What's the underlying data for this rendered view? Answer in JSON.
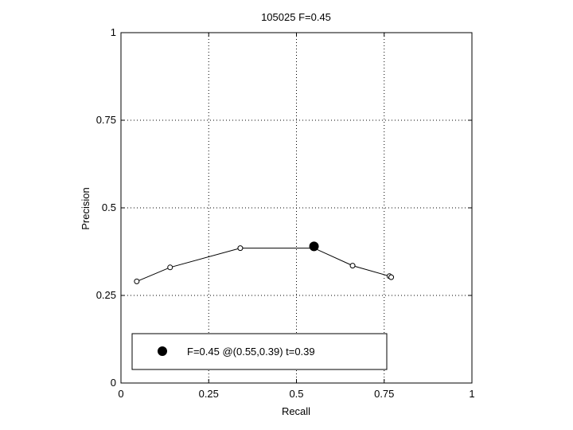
{
  "chart_data": {
    "type": "line",
    "title": "105025 F=0.45",
    "xlabel": "Recall",
    "ylabel": "Precision",
    "xlim": [
      0,
      1
    ],
    "ylim": [
      0,
      1
    ],
    "x_ticks": [
      0,
      0.25,
      0.5,
      0.75,
      1
    ],
    "y_ticks": [
      0,
      0.25,
      0.5,
      0.75,
      1
    ],
    "x_tick_labels": [
      "0",
      "0.25",
      "0.5",
      "0.75",
      "1"
    ],
    "y_tick_labels": [
      "0",
      "0.25",
      "0.5",
      "0.75",
      "1"
    ],
    "grid": true,
    "grid_style": "dotted",
    "series": [
      {
        "x": [
          0.045,
          0.14,
          0.34,
          0.55,
          0.66,
          0.765,
          0.77
        ],
        "y": [
          0.29,
          0.33,
          0.385,
          0.385,
          0.335,
          0.305,
          0.302
        ],
        "marker": "open-circle",
        "color": "#000000"
      }
    ],
    "highlight_point": {
      "x": 0.55,
      "y": 0.39,
      "marker": "filled-circle",
      "color": "#000000"
    },
    "legend": {
      "position": "bottom",
      "entries": [
        "F=0.45 @(0.55,0.39) t=0.39"
      ]
    }
  }
}
